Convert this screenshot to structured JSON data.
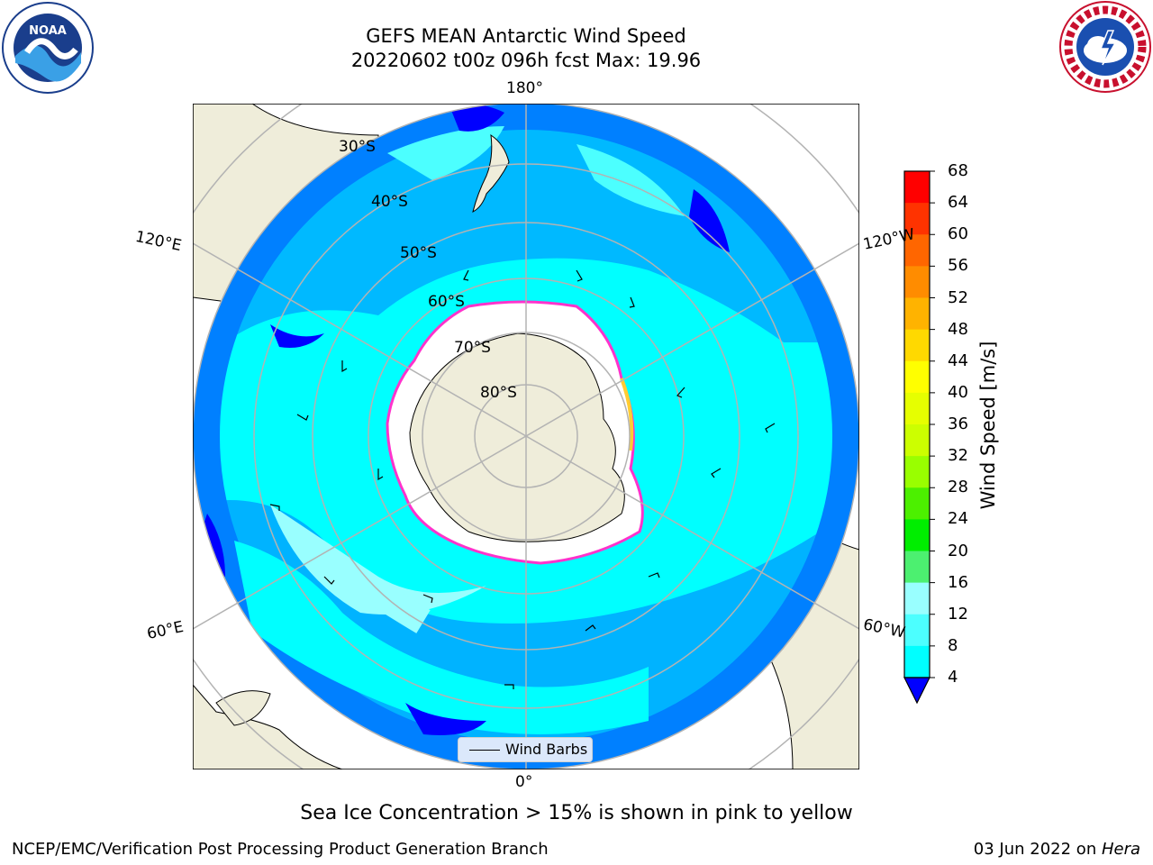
{
  "title": {
    "line1": "GEFS MEAN Antarctic Wind Speed",
    "line2": "20220602 t00z 096h fcst   Max: 19.96"
  },
  "logos": {
    "left": "NOAA",
    "right": "NATIONAL WEATHER SERVICE"
  },
  "map": {
    "projection": "south-polar-stereographic",
    "lon_labels": [
      "180°",
      "120°E",
      "120°W",
      "60°E",
      "60°W",
      "0°"
    ],
    "lat_labels": [
      "30°S",
      "40°S",
      "50°S",
      "60°S",
      "70°S",
      "80°S"
    ],
    "colors": {
      "ocean_low": "#0000ff",
      "band_4_8": "#0080ff",
      "band_8_12": "#00ffff",
      "band_12_16": "#4cffff",
      "band_16_20": "#99ffff",
      "land": "#efedda",
      "sea_ice": "#ffffff",
      "ice_edge": "#ff33cc",
      "gridline": "#b3b3b3"
    }
  },
  "legend": {
    "label": "Wind Barbs"
  },
  "colorbar": {
    "label": "Wind Speed [m/s]",
    "ticks": [
      "68",
      "64",
      "60",
      "56",
      "52",
      "48",
      "44",
      "40",
      "36",
      "32",
      "28",
      "24",
      "20",
      "16",
      "12",
      "8",
      "4"
    ],
    "colors": [
      "#ff0000",
      "#ff3300",
      "#ff6600",
      "#ff8c00",
      "#ffb300",
      "#ffd900",
      "#ffff00",
      "#e6ff00",
      "#ccff00",
      "#99ff00",
      "#4cf000",
      "#00ee00",
      "#4cf070",
      "#99ffff",
      "#4cffff",
      "#00ffff",
      "#0080ff",
      "#0000ff"
    ]
  },
  "footnote": "Sea Ice Concentration > 15% is shown in pink to yellow",
  "credits": {
    "left": "NCEP/EMC/Verification Post Processing Product Generation Branch",
    "right_date": "03 Jun 2022 on ",
    "right_host": "Hera"
  }
}
